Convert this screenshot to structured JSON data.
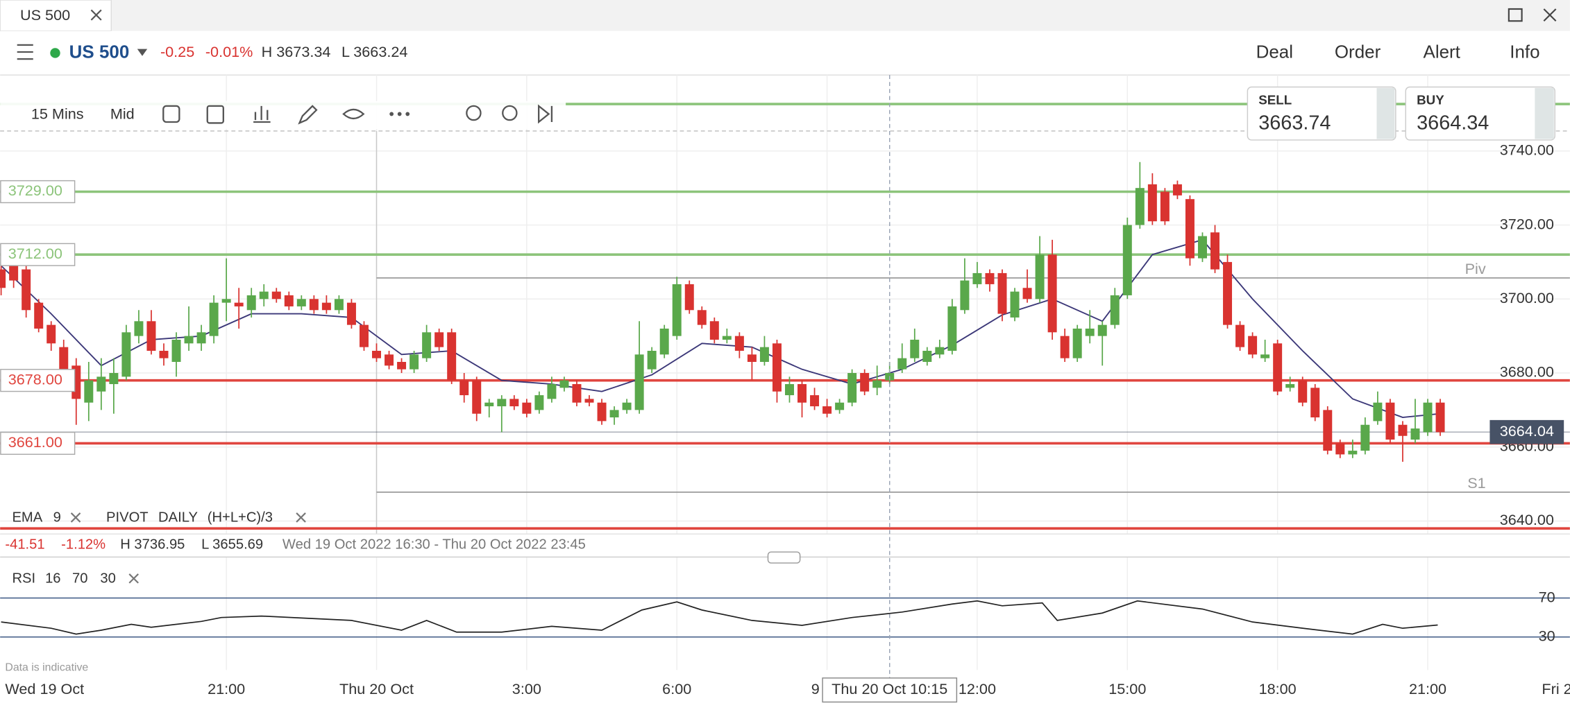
{
  "window": {
    "tab": "US 500"
  },
  "toolbar": {
    "instrument": "US 500",
    "change": "-0.25",
    "change_pct": "-0.01%",
    "high": "H 3673.34",
    "low": "L 3663.24",
    "menu": [
      "Deal",
      "Order",
      "Alert",
      "Info"
    ]
  },
  "chart_controls": {
    "interval": "15 Mins",
    "price_type": "Mid"
  },
  "quote": {
    "sell_label": "SELL",
    "sell": "3663.74",
    "buy_label": "BUY",
    "buy": "3664.34"
  },
  "info_bar": {
    "change": "-41.51",
    "change_pct": "-1.12%",
    "high": "H 3736.95",
    "low": "L 3655.69",
    "range": "Wed 19 Oct 2022 16:30 - Thu 20 Oct 2022 23:45"
  },
  "footnote": "Data is indicative",
  "chart_data": [
    {
      "type": "candlestick",
      "x": [
        16.5,
        16.75,
        17,
        17.25,
        17.5,
        17.75,
        18,
        18.25,
        18.5,
        18.75,
        19,
        19.25,
        19.5,
        19.75,
        20,
        20.25,
        20.5,
        20.75,
        21,
        21.25,
        21.5,
        21.75,
        22,
        22.25,
        22.5,
        22.75,
        23,
        23.25,
        23.5,
        23.75,
        24,
        24.25,
        24.5,
        24.75,
        25,
        25.25,
        25.5,
        25.75,
        26,
        26.25,
        26.5,
        26.75,
        27,
        27.25,
        27.5,
        27.75,
        28,
        28.25,
        28.5,
        28.75,
        29,
        29.25,
        29.5,
        29.75,
        30,
        30.25,
        30.5,
        30.75,
        31,
        31.25,
        31.5,
        31.75,
        32,
        32.25,
        32.5,
        32.75,
        33,
        33.25,
        33.5,
        33.75,
        34,
        34.25,
        34.5,
        34.75,
        35,
        35.25,
        35.5,
        35.75,
        36,
        36.25,
        36.5,
        36.75,
        37,
        37.25,
        37.5,
        37.75,
        38,
        38.25,
        38.5,
        38.75,
        39,
        39.25,
        39.5,
        39.75,
        40,
        40.25,
        40.5,
        40.75,
        41,
        41.25,
        41.5,
        41.75,
        42,
        42.25,
        42.5,
        42.75,
        43,
        43.25,
        43.5,
        43.75,
        44,
        44.25,
        44.5,
        44.75,
        45,
        45.25
      ],
      "ohlc": [
        [
          3708,
          3710,
          3701,
          3703
        ],
        [
          3709,
          3710,
          3703,
          3705
        ],
        [
          3708,
          3709,
          3695,
          3697
        ],
        [
          3699,
          3700,
          3691,
          3692
        ],
        [
          3693,
          3694,
          3686,
          3688
        ],
        [
          3687,
          3689,
          3680,
          3681
        ],
        [
          3682,
          3684,
          3666,
          3673
        ],
        [
          3672,
          3683,
          3667,
          3678
        ],
        [
          3675,
          3684,
          3670,
          3679
        ],
        [
          3677,
          3684,
          3669,
          3680
        ],
        [
          3679,
          3693,
          3678,
          3691
        ],
        [
          3690,
          3697,
          3688,
          3694
        ],
        [
          3694,
          3697,
          3685,
          3686
        ],
        [
          3686,
          3688,
          3682,
          3684
        ],
        [
          3683,
          3691,
          3679,
          3689
        ],
        [
          3688,
          3698,
          3686,
          3690
        ],
        [
          3688,
          3693,
          3686,
          3691
        ],
        [
          3690,
          3701,
          3688,
          3699
        ],
        [
          3699,
          3711,
          3694,
          3700
        ],
        [
          3699,
          3703,
          3692,
          3698
        ],
        [
          3697,
          3703,
          3695,
          3701
        ],
        [
          3700,
          3704,
          3698,
          3702
        ],
        [
          3702,
          3703,
          3699,
          3700
        ],
        [
          3701,
          3702,
          3697,
          3698
        ],
        [
          3698,
          3701,
          3697,
          3700
        ],
        [
          3700,
          3701,
          3696,
          3697
        ],
        [
          3699,
          3701,
          3696,
          3697
        ],
        [
          3697,
          3701,
          3696,
          3700
        ],
        [
          3699,
          3700,
          3692,
          3693
        ],
        [
          3693,
          3694,
          3686,
          3687
        ],
        [
          3686,
          3688,
          3683,
          3684
        ],
        [
          3685,
          3686,
          3681,
          3682
        ],
        [
          3683,
          3684,
          3680,
          3681
        ],
        [
          3681,
          3686,
          3680,
          3685
        ],
        [
          3684,
          3693,
          3683,
          3691
        ],
        [
          3691,
          3692,
          3686,
          3687
        ],
        [
          3691,
          3692,
          3677,
          3678
        ],
        [
          3678,
          3680,
          3672,
          3674
        ],
        [
          3678,
          3679,
          3667,
          3669
        ],
        [
          3671,
          3673,
          3668,
          3672
        ],
        [
          3671,
          3674,
          3664,
          3673
        ],
        [
          3673,
          3674,
          3670,
          3671
        ],
        [
          3672,
          3673,
          3668,
          3669
        ],
        [
          3670,
          3675,
          3669,
          3674
        ],
        [
          3673,
          3679,
          3672,
          3677
        ],
        [
          3676,
          3679,
          3675,
          3678
        ],
        [
          3677,
          3678,
          3671,
          3672
        ],
        [
          3673,
          3674,
          3671,
          3672
        ],
        [
          3672,
          3673,
          3666,
          3667
        ],
        [
          3668,
          3671,
          3666,
          3670
        ],
        [
          3670,
          3673,
          3669,
          3672
        ],
        [
          3670,
          3694,
          3669,
          3685
        ],
        [
          3681,
          3687,
          3680,
          3686
        ],
        [
          3685,
          3693,
          3684,
          3692
        ],
        [
          3690,
          3706,
          3689,
          3704
        ],
        [
          3704,
          3705,
          3696,
          3697
        ],
        [
          3697,
          3698,
          3692,
          3693
        ],
        [
          3694,
          3695,
          3688,
          3689
        ],
        [
          3689,
          3692,
          3688,
          3690
        ],
        [
          3690,
          3691,
          3684,
          3686
        ],
        [
          3685,
          3687,
          3678,
          3683
        ],
        [
          3683,
          3690,
          3682,
          3687
        ],
        [
          3688,
          3689,
          3672,
          3675
        ],
        [
          3674,
          3679,
          3672,
          3677
        ],
        [
          3677,
          3678,
          3668,
          3672
        ],
        [
          3674,
          3676,
          3670,
          3671
        ],
        [
          3671,
          3673,
          3668,
          3669
        ],
        [
          3670,
          3673,
          3669,
          3672
        ],
        [
          3672,
          3681,
          3671,
          3680
        ],
        [
          3680,
          3681,
          3674,
          3675
        ],
        [
          3676,
          3682,
          3674,
          3678
        ],
        [
          3678,
          3683,
          3677,
          3680
        ],
        [
          3681,
          3688,
          3680,
          3684
        ],
        [
          3684,
          3692,
          3683,
          3689
        ],
        [
          3683,
          3687,
          3682,
          3686
        ],
        [
          3685,
          3689,
          3684,
          3687
        ],
        [
          3686,
          3700,
          3685,
          3698
        ],
        [
          3697,
          3711,
          3696,
          3705
        ],
        [
          3704,
          3710,
          3703,
          3707
        ],
        [
          3707,
          3708,
          3702,
          3704
        ],
        [
          3707,
          3708,
          3694,
          3696
        ],
        [
          3695,
          3703,
          3694,
          3702
        ],
        [
          3703,
          3708,
          3699,
          3700
        ],
        [
          3700,
          3717,
          3699,
          3712
        ],
        [
          3712,
          3716,
          3689,
          3691
        ],
        [
          3690,
          3692,
          3683,
          3684
        ],
        [
          3684,
          3693,
          3683,
          3692
        ],
        [
          3690,
          3697,
          3688,
          3692
        ],
        [
          3690,
          3694,
          3682,
          3693
        ],
        [
          3693,
          3703,
          3692,
          3701
        ],
        [
          3701,
          3722,
          3700,
          3720
        ],
        [
          3720,
          3737,
          3719,
          3730
        ],
        [
          3731,
          3734,
          3720,
          3721
        ],
        [
          3729,
          3730,
          3720,
          3721
        ],
        [
          3731,
          3732,
          3727,
          3728
        ],
        [
          3727,
          3728,
          3709,
          3711
        ],
        [
          3711,
          3718,
          3710,
          3717
        ],
        [
          3718,
          3720,
          3707,
          3708
        ],
        [
          3710,
          3712,
          3692,
          3693
        ],
        [
          3693,
          3694,
          3686,
          3687
        ],
        [
          3690,
          3691,
          3684,
          3685
        ],
        [
          3684,
          3689,
          3683,
          3685
        ],
        [
          3688,
          3689,
          3674,
          3675
        ],
        [
          3676,
          3679,
          3675,
          3677
        ],
        [
          3678,
          3679,
          3671,
          3672
        ],
        [
          3676,
          3677,
          3667,
          3668
        ],
        [
          3670,
          3671,
          3658,
          3659
        ],
        [
          3661,
          3662,
          3657,
          3658
        ],
        [
          3658,
          3662,
          3657,
          3659
        ],
        [
          3659,
          3668,
          3658,
          3666
        ],
        [
          3667,
          3675,
          3666,
          3672
        ],
        [
          3672,
          3673,
          3661,
          3662
        ],
        [
          3666,
          3667,
          3656,
          3663
        ],
        [
          3662,
          3673,
          3661,
          3665
        ],
        [
          3664,
          3673,
          3663,
          3672
        ],
        [
          3672,
          3673,
          3663,
          3664
        ]
      ],
      "up_color": "#5aa84b",
      "down_color": "#d93330",
      "xlim": [
        16.48,
        47.84
      ],
      "ylim": [
        3630,
        3760
      ],
      "xticks": [
        {
          "value": 21,
          "label": "21:00"
        },
        {
          "value": 24,
          "label": "Thu 20 Oct"
        },
        {
          "value": 27,
          "label": "3:00"
        },
        {
          "value": 30,
          "label": "6:00"
        },
        {
          "value": 33,
          "label": "9"
        },
        {
          "value": 36,
          "label": "12:00"
        },
        {
          "value": 39,
          "label": "15:00"
        },
        {
          "value": 42,
          "label": "18:00"
        },
        {
          "value": 45,
          "label": "21:00"
        },
        {
          "value": 48,
          "label": "Fri 2"
        }
      ],
      "x_start_label": "Wed 19 Oct",
      "yticks": [
        {
          "value": 3740,
          "label": "3740.00"
        },
        {
          "value": 3720,
          "label": "3720.00"
        },
        {
          "value": 3700,
          "label": "3700.00"
        },
        {
          "value": 3680,
          "label": "3680.00"
        },
        {
          "value": 3660,
          "label": "3660.00"
        },
        {
          "value": 3640,
          "label": "3640.00"
        }
      ],
      "grid": true,
      "series": [
        {
          "name": "EMA",
          "period": "9",
          "color": "#3b3778",
          "x": [
            16.5,
            17.5,
            18.5,
            19.5,
            20.5,
            21.5,
            22.5,
            23.5,
            24.5,
            25.5,
            26.5,
            27.5,
            28.5,
            29.5,
            30.5,
            31.5,
            32.5,
            33.5,
            34.5,
            35.5,
            36.5,
            37.5,
            38.5,
            39.5,
            40.5,
            41.5,
            42.5,
            43.5,
            44.5,
            45.25
          ],
          "values": [
            3709,
            3696,
            3682,
            3689,
            3690,
            3696,
            3696,
            3695,
            3685,
            3686,
            3678,
            3677,
            3675,
            3679.5,
            3688,
            3687,
            3681,
            3677,
            3681,
            3687.5,
            3695.7,
            3700,
            3694,
            3712,
            3716,
            3700,
            3686,
            3673,
            3668,
            3669
          ]
        }
      ],
      "pivot": {
        "name": "PIVOT",
        "period": "DAILY",
        "formula": "(H+L+C)/3",
        "x_start": 24,
        "color": "#9a9a9a",
        "levels": [
          {
            "value": 3705.7,
            "label": "Piv"
          },
          {
            "value": 3647.8,
            "label": "S1"
          }
        ]
      },
      "levels": [
        {
          "value": 3752.7,
          "color": "#8cc47a"
        },
        {
          "value": 3729,
          "label": "3729.00",
          "color": "#8cc47a"
        },
        {
          "value": 3712,
          "label": "3712.00",
          "color": "#8cc47a"
        },
        {
          "value": 3678,
          "label": "3678.00",
          "color": "#e0463f"
        },
        {
          "value": 3661,
          "label": "3661.00",
          "color": "#e0463f"
        },
        {
          "value": 3638,
          "color": "#e0463f"
        }
      ],
      "last": 3664.04,
      "last_color": "#475266",
      "crosshair": {
        "x": 34.25,
        "label": "Thu 20 Oct 10:15"
      }
    },
    {
      "type": "line",
      "name": "RSI",
      "params": [
        "16",
        "70",
        "30"
      ],
      "x": [
        16.5,
        17.5,
        18,
        18.5,
        19.1,
        19.5,
        20.5,
        20.9,
        21.7,
        22.5,
        23.5,
        24.5,
        25,
        25.6,
        26.5,
        27.5,
        28.5,
        29.3,
        30,
        30.5,
        31.5,
        32.5,
        33.5,
        34.5,
        35.5,
        36,
        36.5,
        37.3,
        37.6,
        38.5,
        39.2,
        40.5,
        41.5,
        42.5,
        43.5,
        44.1,
        44.5,
        45.2
      ],
      "values": [
        45.4,
        39,
        33,
        37,
        43,
        40,
        46,
        50,
        51.5,
        49.5,
        47,
        37,
        47,
        35,
        35,
        41,
        37,
        57.7,
        66,
        57.7,
        47,
        42,
        50,
        55.6,
        63.8,
        67,
        62,
        65,
        47,
        54.6,
        67,
        58.7,
        45.4,
        39,
        33,
        43,
        39,
        42.3
      ],
      "color": "#222222",
      "ylim": [
        5,
        100
      ],
      "yticks": [
        30,
        70
      ],
      "band_color": "#2c4a7a"
    }
  ]
}
